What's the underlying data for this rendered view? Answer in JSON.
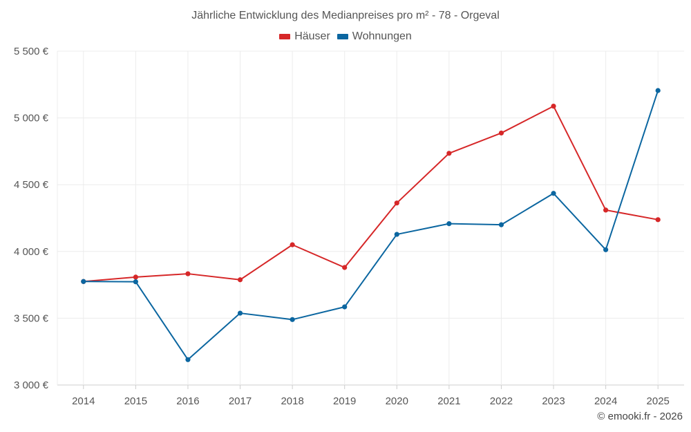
{
  "chart_data": {
    "type": "line",
    "title": "Jährliche Entwicklung des Medianpreises pro m² - 78 - Orgeval",
    "categories": [
      "2014",
      "2015",
      "2016",
      "2017",
      "2018",
      "2019",
      "2020",
      "2021",
      "2022",
      "2023",
      "2024",
      "2025"
    ],
    "series": [
      {
        "name": "Häuser",
        "color": "#d62728",
        "values": [
          3775,
          3808,
          3833,
          3788,
          4050,
          3880,
          4363,
          4735,
          4887,
          5088,
          4310,
          4238
        ]
      },
      {
        "name": "Wohnungen",
        "color": "#0b66a0",
        "values": [
          3775,
          3773,
          3190,
          3538,
          3490,
          3585,
          4128,
          4208,
          4200,
          4435,
          4013,
          5205
        ]
      }
    ],
    "y_ticks": [
      "3 000 €",
      "3 500 €",
      "4 000 €",
      "4 500 €",
      "5 000 €",
      "5 500 €"
    ],
    "ylim": [
      3000,
      5500
    ],
    "xlabel": "",
    "ylabel": "",
    "grid": true,
    "legend_position": "top-center"
  },
  "credit": "© emooki.fr - 2026"
}
